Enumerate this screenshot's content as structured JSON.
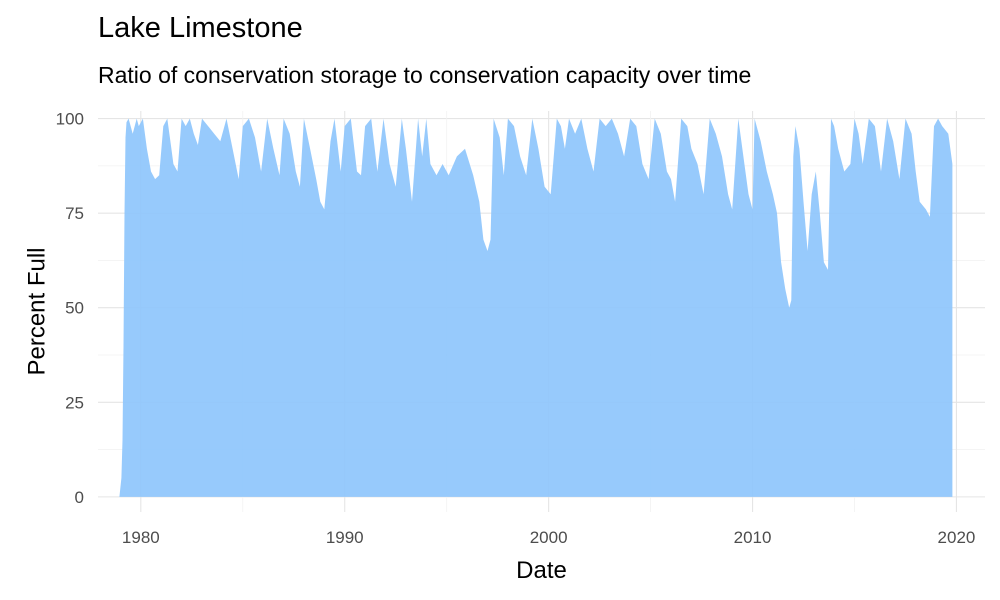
{
  "chart_data": {
    "type": "area",
    "title": "Lake Limestone",
    "subtitle": "Ratio of conservation storage to conservation capacity over time",
    "xlabel": "Date",
    "ylabel": "Percent Full",
    "xlim": [
      1977.9,
      2021.4
    ],
    "ylim": [
      -4,
      102
    ],
    "x_ticks": [
      1980,
      1990,
      2000,
      2010,
      2020
    ],
    "y_ticks": [
      0,
      25,
      50,
      75,
      100
    ],
    "grid": true,
    "fill_color": "#8ec5fc",
    "series": [
      {
        "x": [
          1978.95,
          1979.05,
          1979.1,
          1979.15,
          1979.2,
          1979.25,
          1979.3,
          1979.4,
          1979.6,
          1979.8,
          1979.9,
          1980.1,
          1980.3,
          1980.5,
          1980.7,
          1980.9,
          1981.1,
          1981.3,
          1981.5,
          1981.6,
          1981.8,
          1982.0,
          1982.2,
          1982.4,
          1982.6,
          1982.8,
          1983.0,
          1983.3,
          1983.6,
          1983.9,
          1984.2,
          1984.5,
          1984.8,
          1985.0,
          1985.3,
          1985.6,
          1985.9,
          1986.2,
          1986.5,
          1986.8,
          1987.0,
          1987.3,
          1987.6,
          1987.8,
          1988.0,
          1988.3,
          1988.6,
          1988.8,
          1989.0,
          1989.3,
          1989.5,
          1989.8,
          1990.0,
          1990.3,
          1990.6,
          1990.8,
          1991.0,
          1991.3,
          1991.6,
          1991.9,
          1992.2,
          1992.5,
          1992.8,
          1993.0,
          1993.3,
          1993.6,
          1993.8,
          1994.0,
          1994.2,
          1994.5,
          1994.8,
          1995.1,
          1995.5,
          1995.9,
          1996.3,
          1996.6,
          1996.8,
          1997.0,
          1997.15,
          1997.3,
          1997.6,
          1997.8,
          1998.0,
          1998.3,
          1998.6,
          1998.9,
          1999.2,
          1999.5,
          1999.8,
          2000.1,
          2000.4,
          2000.6,
          2000.8,
          2001.0,
          2001.3,
          2001.6,
          2001.9,
          2002.2,
          2002.5,
          2002.8,
          2003.1,
          2003.4,
          2003.7,
          2004.0,
          2004.3,
          2004.6,
          2004.9,
          2005.2,
          2005.5,
          2005.8,
          2006.0,
          2006.2,
          2006.5,
          2006.8,
          2007.0,
          2007.3,
          2007.6,
          2007.9,
          2008.2,
          2008.5,
          2008.8,
          2009.0,
          2009.3,
          2009.6,
          2009.8,
          2010.0,
          2010.1,
          2010.4,
          2010.7,
          2011.0,
          2011.2,
          2011.4,
          2011.6,
          2011.8,
          2011.9,
          2012.0,
          2012.1,
          2012.3,
          2012.5,
          2012.7,
          2012.9,
          2013.1,
          2013.3,
          2013.5,
          2013.7,
          2013.85,
          2014.0,
          2014.2,
          2014.5,
          2014.8,
          2015.0,
          2015.2,
          2015.4,
          2015.7,
          2016.0,
          2016.3,
          2016.6,
          2016.9,
          2017.2,
          2017.5,
          2017.8,
          2018.0,
          2018.2,
          2018.5,
          2018.7,
          2018.9,
          2019.1,
          2019.3,
          2019.6,
          2019.8
        ],
        "y": [
          0,
          5,
          15,
          40,
          75,
          95,
          99,
          100,
          96,
          100,
          98,
          100,
          92,
          86,
          84,
          85,
          98,
          100,
          92,
          88,
          86,
          100,
          98,
          100,
          96,
          93,
          100,
          98,
          96,
          94,
          100,
          92,
          84,
          98,
          100,
          95,
          86,
          100,
          92,
          85,
          100,
          96,
          86,
          82,
          100,
          92,
          84,
          78,
          76,
          94,
          100,
          86,
          98,
          100,
          86,
          85,
          98,
          100,
          86,
          100,
          88,
          82,
          100,
          92,
          78,
          100,
          90,
          100,
          88,
          85,
          88,
          85,
          90,
          92,
          85,
          78,
          68,
          65,
          68,
          100,
          95,
          85,
          100,
          98,
          90,
          85,
          100,
          92,
          82,
          80,
          100,
          98,
          92,
          100,
          96,
          100,
          92,
          86,
          100,
          98,
          100,
          96,
          90,
          100,
          98,
          88,
          84,
          100,
          96,
          86,
          84,
          78,
          100,
          98,
          92,
          88,
          80,
          100,
          96,
          90,
          80,
          76,
          100,
          88,
          80,
          76,
          100,
          94,
          86,
          80,
          75,
          62,
          55,
          50,
          52,
          90,
          98,
          92,
          78,
          65,
          80,
          86,
          75,
          62,
          60,
          100,
          98,
          92,
          86,
          88,
          100,
          96,
          88,
          100,
          98,
          86,
          100,
          94,
          84,
          100,
          96,
          86,
          78,
          76,
          74,
          98,
          100,
          98,
          96,
          88
        ]
      }
    ]
  }
}
